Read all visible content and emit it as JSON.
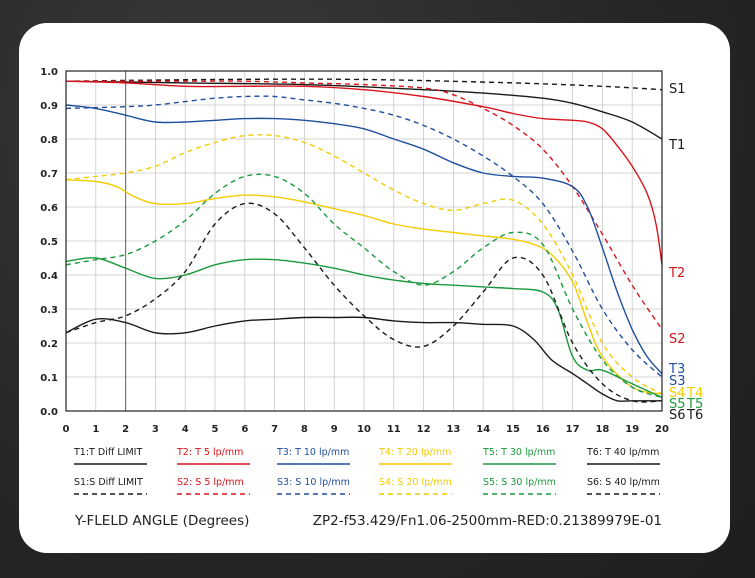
{
  "chart_data": {
    "type": "line",
    "xlabel": "Y-FLELD ANGLE (Degrees)",
    "info": "ZP2-f53.429/Fn1.06-2500mm-RED:0.21389979E-01",
    "xlim": [
      0,
      20
    ],
    "ylim": [
      0,
      1.0
    ],
    "x_ticks": [
      0,
      1,
      2,
      3,
      4,
      5,
      6,
      7,
      8,
      9,
      10,
      11,
      12,
      13,
      14,
      15,
      16,
      17,
      18,
      19,
      20
    ],
    "y_ticks": [
      0.0,
      0.1,
      0.2,
      0.3,
      0.4,
      0.5,
      0.6,
      0.7,
      0.8,
      0.9,
      1.0
    ],
    "grid": true,
    "vertical_marker_x": 2,
    "series": [
      {
        "name": "T1:T Diff LIMIT",
        "code": "T1",
        "color": "#1a1a1a",
        "dash": false,
        "x": [
          0,
          4,
          8,
          12,
          14,
          16,
          17,
          18,
          19,
          20
        ],
        "y": [
          0.97,
          0.965,
          0.96,
          0.945,
          0.935,
          0.92,
          0.905,
          0.88,
          0.85,
          0.8
        ]
      },
      {
        "name": "S1:S Diff LIMIT",
        "code": "S1",
        "color": "#1a1a1a",
        "dash": true,
        "x": [
          0,
          5,
          10,
          15,
          18,
          20
        ],
        "y": [
          0.97,
          0.975,
          0.975,
          0.965,
          0.955,
          0.945
        ]
      },
      {
        "name": "T2: T 5 lp/mm",
        "code": "T2",
        "color": "#d9141c",
        "dash": false,
        "x": [
          0,
          2,
          4,
          6,
          8,
          10,
          12,
          14,
          15,
          16,
          17,
          17.5,
          18,
          18.5,
          19,
          19.5,
          19.8,
          20
        ],
        "y": [
          0.97,
          0.965,
          0.955,
          0.955,
          0.955,
          0.945,
          0.925,
          0.895,
          0.875,
          0.86,
          0.855,
          0.85,
          0.83,
          0.78,
          0.72,
          0.64,
          0.55,
          0.43
        ]
      },
      {
        "name": "S2: S 5 lp/mm",
        "code": "S2",
        "color": "#d9141c",
        "dash": true,
        "x": [
          0,
          4,
          6,
          8,
          10,
          12,
          13,
          14,
          15,
          16,
          17,
          18,
          19,
          20
        ],
        "y": [
          0.97,
          0.97,
          0.97,
          0.965,
          0.96,
          0.95,
          0.93,
          0.89,
          0.84,
          0.77,
          0.66,
          0.52,
          0.37,
          0.24
        ]
      },
      {
        "name": "T3: T 10 lp/mm",
        "code": "T3",
        "color": "#1f4e9e",
        "dash": false,
        "x": [
          0,
          1,
          2,
          3,
          4,
          5,
          6,
          7,
          8,
          9,
          10,
          11,
          12,
          13,
          14,
          15,
          16,
          17,
          17.5,
          18,
          18.5,
          19,
          19.5,
          20
        ],
        "y": [
          0.9,
          0.89,
          0.87,
          0.85,
          0.85,
          0.855,
          0.86,
          0.86,
          0.855,
          0.845,
          0.83,
          0.8,
          0.77,
          0.73,
          0.7,
          0.69,
          0.685,
          0.66,
          0.6,
          0.48,
          0.35,
          0.24,
          0.16,
          0.11
        ]
      },
      {
        "name": "S3: S  10 lp/mm",
        "code": "S3",
        "color": "#1f4e9e",
        "dash": true,
        "x": [
          0,
          2,
          3,
          4,
          5,
          6,
          7,
          8,
          9,
          10,
          11,
          12,
          13,
          14,
          15,
          16,
          17,
          18,
          19,
          20
        ],
        "y": [
          0.89,
          0.895,
          0.9,
          0.91,
          0.92,
          0.925,
          0.925,
          0.915,
          0.905,
          0.89,
          0.87,
          0.84,
          0.8,
          0.75,
          0.69,
          0.61,
          0.47,
          0.3,
          0.18,
          0.1
        ]
      },
      {
        "name": "T4: T 20 lp/mm",
        "code": "T4",
        "color": "#f2cc00",
        "dash": false,
        "x": [
          0,
          1,
          1.7,
          2.3,
          3,
          4,
          5,
          6,
          7,
          8,
          9,
          10,
          11,
          12,
          13,
          14,
          15,
          15.7,
          16.3,
          17,
          17.5,
          18,
          19,
          20
        ],
        "y": [
          0.68,
          0.675,
          0.66,
          0.63,
          0.61,
          0.61,
          0.625,
          0.635,
          0.63,
          0.615,
          0.595,
          0.575,
          0.55,
          0.535,
          0.525,
          0.515,
          0.505,
          0.49,
          0.46,
          0.38,
          0.26,
          0.16,
          0.07,
          0.05
        ]
      },
      {
        "name": "S4: S  20 lp/mm",
        "code": "S4",
        "color": "#f2cc00",
        "dash": true,
        "x": [
          0,
          1,
          2,
          3,
          4,
          5,
          6,
          7,
          8,
          9,
          10,
          11,
          12,
          13,
          14,
          15,
          16,
          17,
          18,
          19,
          20
        ],
        "y": [
          0.68,
          0.69,
          0.7,
          0.72,
          0.76,
          0.79,
          0.81,
          0.81,
          0.79,
          0.75,
          0.7,
          0.65,
          0.61,
          0.59,
          0.61,
          0.62,
          0.55,
          0.4,
          0.2,
          0.1,
          0.05
        ]
      },
      {
        "name": "T5: T 30 lp/mm",
        "code": "T5",
        "color": "#1a9a3c",
        "dash": false,
        "x": [
          0,
          1,
          2,
          3,
          4,
          5,
          6,
          7,
          8,
          9,
          10,
          11,
          12,
          13,
          14,
          15,
          16,
          16.5,
          17,
          17.5,
          18,
          19,
          20
        ],
        "y": [
          0.44,
          0.45,
          0.42,
          0.39,
          0.4,
          0.43,
          0.445,
          0.445,
          0.435,
          0.42,
          0.4,
          0.385,
          0.375,
          0.37,
          0.365,
          0.36,
          0.35,
          0.3,
          0.16,
          0.12,
          0.12,
          0.08,
          0.04
        ]
      },
      {
        "name": "S5: S 30 lp/mm",
        "code": "S5",
        "color": "#1a9a3c",
        "dash": true,
        "x": [
          0,
          1,
          2,
          3,
          4,
          5,
          6,
          7,
          8,
          9,
          10,
          11,
          12,
          13,
          14,
          15,
          16,
          17,
          18,
          19,
          20
        ],
        "y": [
          0.43,
          0.445,
          0.46,
          0.5,
          0.56,
          0.64,
          0.69,
          0.69,
          0.64,
          0.55,
          0.48,
          0.41,
          0.37,
          0.41,
          0.48,
          0.525,
          0.49,
          0.3,
          0.15,
          0.07,
          0.04
        ]
      },
      {
        "name": "T6: T 40 lp/mm",
        "code": "T6",
        "color": "#1a1a1a",
        "dash": false,
        "x": [
          0,
          1,
          2,
          3,
          4,
          5,
          6,
          7,
          8,
          9,
          10,
          11,
          12,
          13,
          14,
          15,
          15.7,
          16.3,
          17,
          17.5,
          18,
          18.5,
          19,
          20
        ],
        "y": [
          0.23,
          0.27,
          0.26,
          0.23,
          0.23,
          0.25,
          0.265,
          0.27,
          0.275,
          0.275,
          0.275,
          0.265,
          0.26,
          0.26,
          0.255,
          0.25,
          0.21,
          0.15,
          0.11,
          0.08,
          0.05,
          0.03,
          0.03,
          0.03
        ]
      },
      {
        "name": "S6: S 40 lp/mm",
        "code": "S6",
        "color": "#1a1a1a",
        "dash": true,
        "x": [
          0,
          1,
          2,
          3,
          4,
          5,
          6,
          7,
          8,
          9,
          10,
          11,
          12,
          13,
          14,
          15,
          16,
          17,
          18,
          19,
          20
        ],
        "y": [
          0.23,
          0.26,
          0.28,
          0.33,
          0.41,
          0.55,
          0.61,
          0.58,
          0.48,
          0.37,
          0.28,
          0.21,
          0.19,
          0.25,
          0.35,
          0.45,
          0.4,
          0.2,
          0.08,
          0.03,
          0.03
        ]
      }
    ],
    "end_labels": [
      {
        "text": "S1",
        "color": "#1a1a1a"
      },
      {
        "text": "T1",
        "color": "#1a1a1a"
      },
      {
        "text": "T2",
        "color": "#d9141c"
      },
      {
        "text": "S2",
        "color": "#d9141c"
      },
      {
        "text": "T3",
        "color": "#1f4e9e"
      },
      {
        "text": "S3",
        "color": "#1f4e9e"
      },
      {
        "text": "S4",
        "color": "#f2cc00"
      },
      {
        "text": "T4",
        "color": "#f2cc00"
      },
      {
        "text": "S5",
        "color": "#1a9a3c"
      },
      {
        "text": "T5",
        "color": "#1a9a3c"
      },
      {
        "text": "S6",
        "color": "#1a1a1a"
      },
      {
        "text": "T6",
        "color": "#1a1a1a"
      }
    ]
  }
}
